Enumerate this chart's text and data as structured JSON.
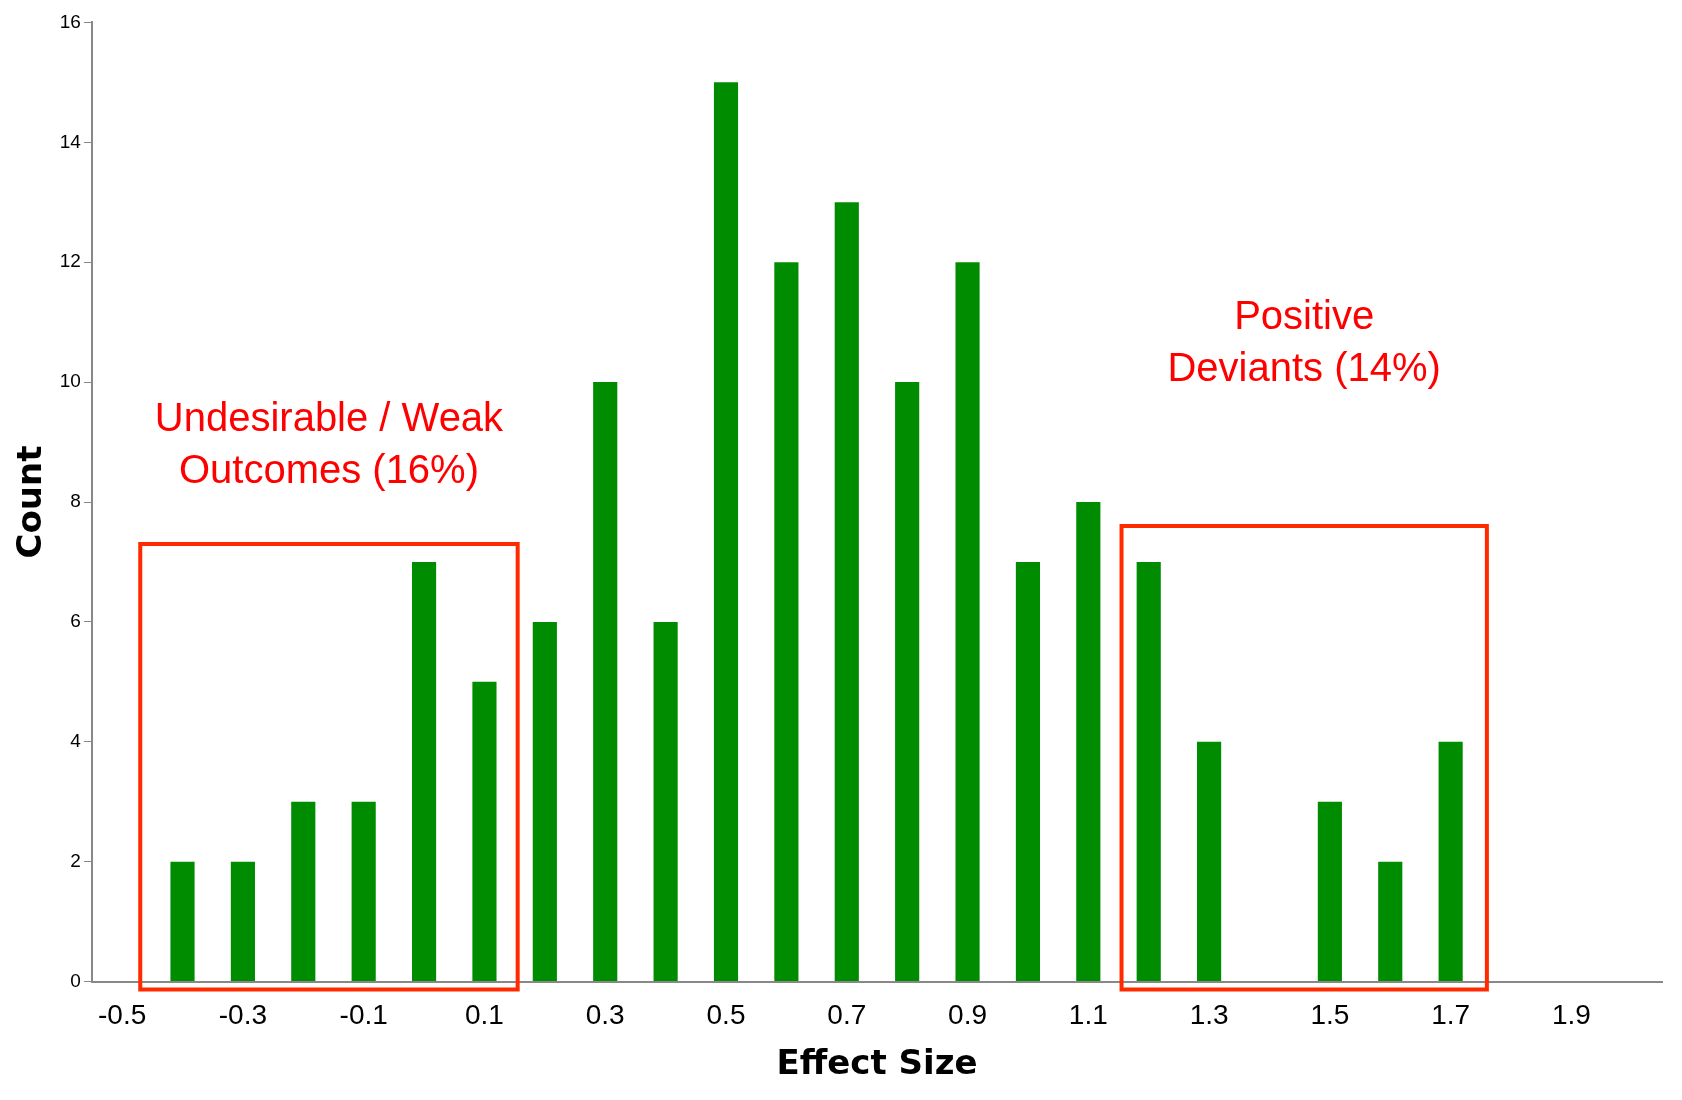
{
  "chart_data": {
    "type": "bar",
    "xlabel": "Effect Size",
    "ylabel": "Count",
    "categories": [
      "-0.5",
      null,
      "-0.3",
      null,
      "-0.1",
      null,
      "0.1",
      null,
      "0.3",
      null,
      "0.5",
      null,
      "0.7",
      null,
      "0.9",
      null,
      "1.1",
      null,
      "1.3",
      null,
      "1.5",
      null,
      "1.7",
      null,
      "1.9",
      null
    ],
    "values": [
      0,
      2,
      2,
      3,
      3,
      7,
      5,
      6,
      10,
      6,
      15,
      12,
      13,
      10,
      12,
      7,
      8,
      7,
      4,
      0,
      3,
      2,
      4,
      0,
      0,
      0
    ],
    "color": "#008c00",
    "ylim": [
      0,
      16
    ],
    "yticks": [
      0,
      2,
      4,
      6,
      8,
      10,
      12,
      14,
      16
    ],
    "grid": false,
    "legend": false,
    "annotations": [
      "Undesirable / Weak\nOutcomes (16%)",
      "Positive\nDeviants (14%)"
    ]
  }
}
